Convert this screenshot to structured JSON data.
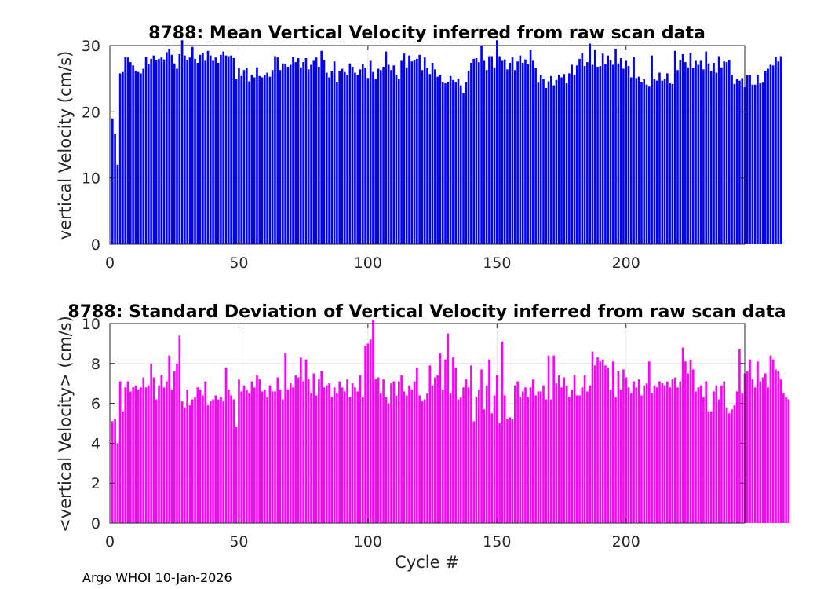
{
  "footer": "Argo WHOI 10-Jan-2026",
  "chart_data": [
    {
      "type": "bar",
      "title": "8788: Mean Vertical Velocity inferred from raw scan data",
      "xlabel": "",
      "ylabel": "vertical Velocity (cm/s)",
      "xlim": [
        0,
        246
      ],
      "ylim": [
        0,
        30
      ],
      "xticks": [
        0,
        50,
        100,
        150,
        200
      ],
      "yticks": [
        0,
        10,
        20,
        30
      ],
      "color": "#0000ff",
      "grid": true,
      "x_start": 1,
      "values": [
        19,
        16.7,
        12,
        25.8,
        26,
        28.3,
        28.2,
        27.5,
        27,
        26.2,
        26,
        25.8,
        26.5,
        28.3,
        27.2,
        28,
        28.5,
        27.8,
        28,
        28.2,
        27.9,
        29,
        29.5,
        28.6,
        27.3,
        26.5,
        28.7,
        30.8,
        28.5,
        27.8,
        28.2,
        29.8,
        28,
        27.4,
        28.6,
        28.9,
        27.7,
        29.2,
        28.5,
        27.7,
        28.2,
        27.4,
        28.6,
        29.1,
        28.5,
        28.4,
        28.5,
        28.1,
        24.9,
        26.6,
        25.4,
        26.3,
        26.6,
        24.6,
        25.6,
        25.2,
        26.7,
        25.4,
        25.2,
        25.6,
        25.9,
        25.3,
        26.3,
        28.4,
        28.2,
        26.3,
        27.3,
        27.2,
        26.8,
        27.1,
        28.3,
        27.5,
        28.1,
        26.7,
        27.5,
        28.1,
        26.4,
        27.1,
        27.7,
        28.2,
        26.8,
        29.2,
        27.8,
        25.9,
        25.2,
        26.1,
        27.6,
        24.5,
        26.2,
        26.5,
        26,
        25.5,
        27.3,
        26.8,
        25.9,
        25.6,
        26.4,
        27.2,
        26.6,
        25.1,
        27.7,
        26,
        25,
        26.5,
        26.3,
        26.8,
        29.1,
        27.1,
        26.3,
        27,
        25.6,
        24.9,
        27.7,
        28.8,
        26.7,
        28.5,
        27.6,
        27.8,
        28,
        28.6,
        26.3,
        28.2,
        26.6,
        25.7,
        27.4,
        26.4,
        25.3,
        25.5,
        24.5,
        24.3,
        24.5,
        25.4,
        24.8,
        24.5,
        25,
        24,
        22.8,
        24.5,
        26.2,
        27.4,
        28,
        28.1,
        27.5,
        30,
        27.7,
        26.3,
        28.4,
        28.4,
        26.7,
        30.8,
        28.4,
        27.7,
        27.9,
        26.4,
        27.4,
        28.2,
        26.3,
        27.6,
        28.5,
        27.4,
        27.9,
        27.2,
        29.3,
        27.7,
        26.6,
        24.4,
        25.5,
        25,
        23.6,
        24.6,
        25.4,
        24,
        24.8,
        25.6,
        25.2,
        25.7,
        24.3,
        25.8,
        27.1,
        25.6,
        27,
        28,
        28.8,
        26.9,
        27.5,
        30.3,
        27.1,
        29.3,
        26.8,
        26.9,
        28.8,
        27.2,
        28.5,
        27.8,
        27.1,
        29.5,
        27.3,
        28.1,
        26.5,
        27.7,
        26.9,
        25.2,
        28.3,
        25.1,
        25.3,
        24.5,
        24.9,
        24.1,
        23.8,
        28.5,
        25,
        24.7,
        25.9,
        24.7,
        25,
        25.8,
        24.3,
        24.2,
        29.2,
        26.3,
        27.8,
        28.7,
        27.5,
        26.7,
        28.9,
        26.6,
        27.7,
        27.1,
        27.7,
        26.4,
        29.1,
        27.3,
        26.2,
        27.4,
        25.9,
        28.4,
        26.7,
        27.6,
        27.5,
        27.8,
        25.6,
        24.2,
        24.9,
        24.7,
        25.1,
        23.7,
        25.5,
        25.6,
        24.1,
        24.1,
        25.6,
        24.3,
        24.4,
        26.2,
        26.5,
        27.1,
        27,
        28.3,
        27.6,
        28.4
      ]
    },
    {
      "type": "bar",
      "title": "8788: Standard Deviation of Vertical Velocity inferred from raw scan data",
      "xlabel": "Cycle #",
      "ylabel": "<vertical Velocity> (cm/s)",
      "xlim": [
        0,
        246
      ],
      "ylim": [
        0,
        10
      ],
      "xticks": [
        0,
        50,
        100,
        150,
        200
      ],
      "yticks": [
        0,
        2,
        4,
        6,
        8,
        10
      ],
      "color": "#ff00ff",
      "grid": true,
      "x_start": 1,
      "values": [
        5.1,
        5.2,
        4,
        7.1,
        5.6,
        6.8,
        7.1,
        6.6,
        6.8,
        6.9,
        6.7,
        6.8,
        7.3,
        6.8,
        6.9,
        8,
        7.3,
        6.2,
        6.9,
        7.4,
        6.8,
        7.1,
        8.4,
        6.7,
        7.6,
        8,
        9.4,
        6.1,
        5.8,
        6.7,
        5.9,
        6.2,
        6.3,
        6.8,
        6.7,
        6.4,
        7.1,
        5.9,
        6.1,
        6.2,
        6.4,
        6.2,
        6.3,
        6.1,
        7.8,
        6.7,
        6.4,
        6.2,
        4.8,
        7.2,
        6.6,
        6.9,
        6.7,
        6.5,
        7.1,
        6.8,
        7.4,
        7.2,
        6.6,
        6.7,
        6.3,
        6.9,
        6.6,
        6.6,
        7.3,
        6.7,
        6.2,
        8.5,
        6.7,
        7,
        6.8,
        7.4,
        7.3,
        8.3,
        7.1,
        8.2,
        7.2,
        6.5,
        7.5,
        6.4,
        7.2,
        7.6,
        6.8,
        6.9,
        7,
        6.3,
        6.8,
        6.5,
        7.1,
        6.8,
        6.6,
        7.2,
        6.3,
        7,
        6.8,
        6.6,
        7.4,
        6.3,
        8.9,
        9,
        9.2,
        10.2,
        7.2,
        7.3,
        6.5,
        7.2,
        6.3,
        6,
        7,
        7.1,
        6.4,
        7.1,
        7.4,
        6.6,
        6.4,
        6.9,
        6.7,
        7.1,
        7.8,
        6.4,
        6.1,
        6.2,
        6.5,
        7.9,
        6.9,
        7.3,
        7.4,
        8.5,
        6.7,
        8.2,
        9.5,
        6.5,
        8.3,
        7.8,
        6.2,
        6.3,
        6.8,
        7.2,
        6.8,
        7.9,
        5.1,
        6.3,
        6.7,
        7.7,
        5.7,
        6.9,
        8.2,
        5.5,
        6.4,
        7.4,
        5,
        9.1,
        6.4,
        5.2,
        5.3,
        5.2,
        6.9,
        7.1,
        6.3,
        6.6,
        6.8,
        6.3,
        6.8,
        7.2,
        6.4,
        6.6,
        6.6,
        6.9,
        6.2,
        8.4,
        6.2,
        8.4,
        7,
        7.4,
        6.8,
        7.3,
        6.9,
        6.3,
        6.7,
        7.4,
        6.4,
        6.4,
        6.8,
        7.4,
        6.6,
        6.9,
        8.6,
        7.9,
        8.3,
        8.1,
        8.2,
        7.9,
        7.8,
        6.7,
        8.1,
        6.3,
        7.6,
        6.7,
        7.7,
        7.3,
        6.8,
        6.5,
        7.1,
        6.8,
        7.2,
        6.4,
        6.9,
        7,
        8.1,
        6.5,
        6.9,
        6.8,
        7.1,
        7,
        6.9,
        7.1,
        6.8,
        7.2,
        7.3,
        6.8,
        7.1,
        8.8,
        8.1,
        7.5,
        8.2,
        7.7,
        6.6,
        6.8,
        6.9,
        6.3,
        7.1,
        5.6,
        5.6,
        6.6,
        6.9,
        6.2,
        6.9,
        7.1,
        5.8,
        5.5,
        5.7,
        5.9,
        6.6,
        8.7,
        6.5,
        7.5,
        7.6,
        8.2,
        7.2,
        6.8,
        8.1,
        7.1,
        7.3,
        7.5,
        6.8,
        8.4,
        8.2,
        7.7,
        7.6,
        7.2,
        6.5,
        6.3,
        6.2
      ]
    }
  ]
}
